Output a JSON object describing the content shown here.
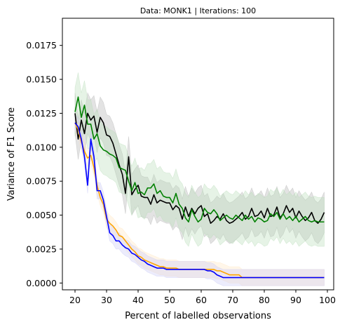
{
  "chart_data": {
    "type": "line",
    "title": "Data: MONK1 | Iterations: 100",
    "xlabel": "Percent of labelled observations",
    "ylabel": "Variance of F1 Score",
    "xlim": [
      16,
      102
    ],
    "ylim": [
      -0.0005,
      0.0195
    ],
    "xticks": [
      20,
      30,
      40,
      50,
      60,
      70,
      80,
      90,
      100
    ],
    "yticks": [
      0.0,
      0.0025,
      0.005,
      0.0075,
      0.01,
      0.0125,
      0.015,
      0.0175
    ],
    "ytick_labels": [
      "0.0000",
      "0.0025",
      "0.0050",
      "0.0075",
      "0.0100",
      "0.0125",
      "0.0150",
      "0.0175"
    ],
    "grid": false,
    "legend": "none",
    "x_step": 1,
    "series": [
      {
        "color": "#000000",
        "band_color": "#b0b0b0",
        "x_start": 20,
        "values": [
          0.0125,
          0.0106,
          0.012,
          0.011,
          0.0125,
          0.012,
          0.0123,
          0.0111,
          0.0122,
          0.0118,
          0.0109,
          0.0108,
          0.0103,
          0.0095,
          0.0087,
          0.008,
          0.0066,
          0.0093,
          0.0065,
          0.0069,
          0.0072,
          0.0064,
          0.0063,
          0.0063,
          0.0058,
          0.0065,
          0.0059,
          0.0061,
          0.006,
          0.0059,
          0.0059,
          0.0054,
          0.0057,
          0.0055,
          0.0047,
          0.0056,
          0.0049,
          0.0055,
          0.0051,
          0.0055,
          0.0057,
          0.0049,
          0.0051,
          0.0044,
          0.0046,
          0.0049,
          0.0047,
          0.0051,
          0.0046,
          0.0044,
          0.0045,
          0.0047,
          0.0049,
          0.0052,
          0.0047,
          0.0049,
          0.0055,
          0.0049,
          0.005,
          0.0053,
          0.0048,
          0.0055,
          0.0049,
          0.005,
          0.0056,
          0.0048,
          0.0051,
          0.0057,
          0.0052,
          0.0055,
          0.0048,
          0.0053,
          0.0049,
          0.0046,
          0.0048,
          0.0052,
          0.0046,
          0.0044,
          0.0047,
          0.0052
        ],
        "band_width": 0.0015
      },
      {
        "color": "#008000",
        "band_color": "#b8dcb8",
        "x_start": 20,
        "values": [
          0.0126,
          0.0137,
          0.0122,
          0.0131,
          0.0117,
          0.0117,
          0.0106,
          0.011,
          0.0101,
          0.0098,
          0.0097,
          0.0095,
          0.0094,
          0.0092,
          0.0085,
          0.0084,
          0.0083,
          0.0075,
          0.0068,
          0.0074,
          0.0066,
          0.0067,
          0.0065,
          0.007,
          0.007,
          0.0073,
          0.0066,
          0.0068,
          0.0064,
          0.0063,
          0.0063,
          0.0059,
          0.0066,
          0.0058,
          0.0055,
          0.0048,
          0.0045,
          0.0054,
          0.0049,
          0.0045,
          0.0047,
          0.0055,
          0.0052,
          0.0051,
          0.0054,
          0.0051,
          0.0046,
          0.0048,
          0.005,
          0.0048,
          0.0047,
          0.005,
          0.0048,
          0.0046,
          0.005,
          0.0047,
          0.0049,
          0.0045,
          0.0048,
          0.0047,
          0.0045,
          0.0046,
          0.0051,
          0.0049,
          0.0052,
          0.0047,
          0.0051,
          0.0047,
          0.0049,
          0.0046,
          0.0049,
          0.0045,
          0.0047,
          0.0049,
          0.0046,
          0.0045,
          0.0046,
          0.0045,
          0.0045,
          0.0045
        ],
        "band_width": 0.0018
      },
      {
        "color": "#ffa500",
        "band_color": "#ffe6c0",
        "x_start": 20,
        "values": [
          0.0118,
          0.0113,
          0.0104,
          0.0097,
          0.0092,
          0.0094,
          0.0085,
          0.0072,
          0.0063,
          0.0058,
          0.0047,
          0.0044,
          0.0042,
          0.0039,
          0.0035,
          0.0034,
          0.0031,
          0.0028,
          0.0025,
          0.0023,
          0.002,
          0.0019,
          0.0017,
          0.0016,
          0.0015,
          0.0014,
          0.0013,
          0.0012,
          0.0012,
          0.0011,
          0.0011,
          0.0011,
          0.0011,
          0.001,
          0.001,
          0.001,
          0.001,
          0.001,
          0.001,
          0.001,
          0.001,
          0.001,
          0.001,
          0.001,
          0.001,
          0.0009,
          0.0009,
          0.0008,
          0.0007,
          0.0006,
          0.0006,
          0.0006,
          0.0006,
          0.0004,
          0.0004,
          0.0004,
          0.0004,
          0.0004,
          0.0004,
          0.0004,
          0.0004,
          0.0004,
          0.0004,
          0.0004,
          0.0004,
          0.0004,
          0.0004,
          0.0004,
          0.0004,
          0.0004,
          0.0004,
          0.0004,
          0.0004,
          0.0004,
          0.0004,
          0.0004,
          0.0004,
          0.0004,
          0.0004,
          0.0004
        ],
        "band_width": 0.0006
      },
      {
        "color": "#0000ff",
        "band_color": "#c8c8f5",
        "x_start": 20,
        "values": [
          0.0118,
          0.0115,
          0.0106,
          0.0093,
          0.0072,
          0.0106,
          0.0093,
          0.0068,
          0.0068,
          0.0061,
          0.0049,
          0.0037,
          0.0035,
          0.0031,
          0.0031,
          0.0028,
          0.0026,
          0.0025,
          0.0022,
          0.0021,
          0.0019,
          0.0017,
          0.0016,
          0.0014,
          0.0013,
          0.0012,
          0.0011,
          0.0011,
          0.0011,
          0.001,
          0.001,
          0.001,
          0.001,
          0.001,
          0.001,
          0.001,
          0.001,
          0.001,
          0.001,
          0.001,
          0.001,
          0.001,
          0.0009,
          0.0009,
          0.0008,
          0.0006,
          0.0005,
          0.0004,
          0.0004,
          0.0004,
          0.0004,
          0.0004,
          0.0004,
          0.0004,
          0.0004,
          0.0004,
          0.0004,
          0.0004,
          0.0004,
          0.0004,
          0.0004,
          0.0004,
          0.0004,
          0.0004,
          0.0004,
          0.0004,
          0.0004,
          0.0004,
          0.0004,
          0.0004,
          0.0004,
          0.0004,
          0.0004,
          0.0004,
          0.0004,
          0.0004,
          0.0004,
          0.0004,
          0.0004,
          0.0004
        ],
        "band_width": 0.0006
      }
    ]
  }
}
